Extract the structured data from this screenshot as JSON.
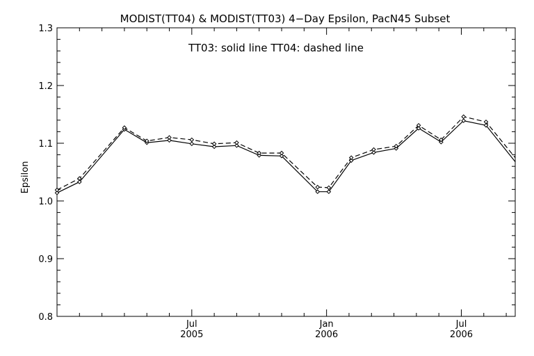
{
  "chart_data": {
    "type": "line",
    "title": "MODIST(TT04) & MODIST(TT03) 4−Day Epsilon, PacN45 Subset",
    "annotation": "TT03: solid line   TT04: dashed line",
    "xlabel": "",
    "ylabel": "Epsilon",
    "ylim": [
      0.8,
      1.3
    ],
    "yticks": [
      0.8,
      0.9,
      1.0,
      1.1,
      1.2,
      1.3
    ],
    "ytick_labels": [
      "0.8",
      "0.9",
      "1.0",
      "1.1",
      "1.2",
      "1.3"
    ],
    "x_unit": "month index (0 = Jan 2005)",
    "xlim": [
      0,
      20.4
    ],
    "x_major_ticks": [
      {
        "x": 6,
        "label_top": "Jul",
        "label_bottom": "2005"
      },
      {
        "x": 12,
        "label_top": "Jan",
        "label_bottom": "2006"
      },
      {
        "x": 18,
        "label_top": "Jul",
        "label_bottom": "2006"
      }
    ],
    "x_minor_ticks": [
      1,
      2,
      3,
      4,
      5,
      7,
      8,
      9,
      10,
      11,
      13,
      14,
      15,
      16,
      17,
      19,
      20
    ],
    "grid": false,
    "series": [
      {
        "name": "TT03",
        "style": "solid",
        "x": [
          0,
          1,
          3,
          4,
          5,
          6,
          7,
          8,
          9,
          10,
          11.6,
          12.1,
          13.1,
          14.1,
          15.1,
          16.1,
          17.1,
          18.1,
          19.1,
          20.4
        ],
        "y": [
          1.014,
          1.033,
          1.124,
          1.101,
          1.105,
          1.099,
          1.094,
          1.096,
          1.079,
          1.078,
          1.016,
          1.016,
          1.07,
          1.084,
          1.091,
          1.126,
          1.102,
          1.139,
          1.131,
          1.068
        ]
      },
      {
        "name": "TT04",
        "style": "dashed",
        "x": [
          0,
          1,
          3,
          4,
          5,
          6,
          7,
          8,
          9,
          10,
          11.6,
          12.1,
          13.1,
          14.1,
          15.1,
          16.1,
          17.1,
          18.1,
          19.1,
          20.4
        ],
        "y": [
          1.019,
          1.039,
          1.127,
          1.104,
          1.11,
          1.106,
          1.099,
          1.101,
          1.083,
          1.083,
          1.024,
          1.023,
          1.075,
          1.089,
          1.095,
          1.131,
          1.106,
          1.146,
          1.137,
          1.075
        ]
      }
    ]
  }
}
